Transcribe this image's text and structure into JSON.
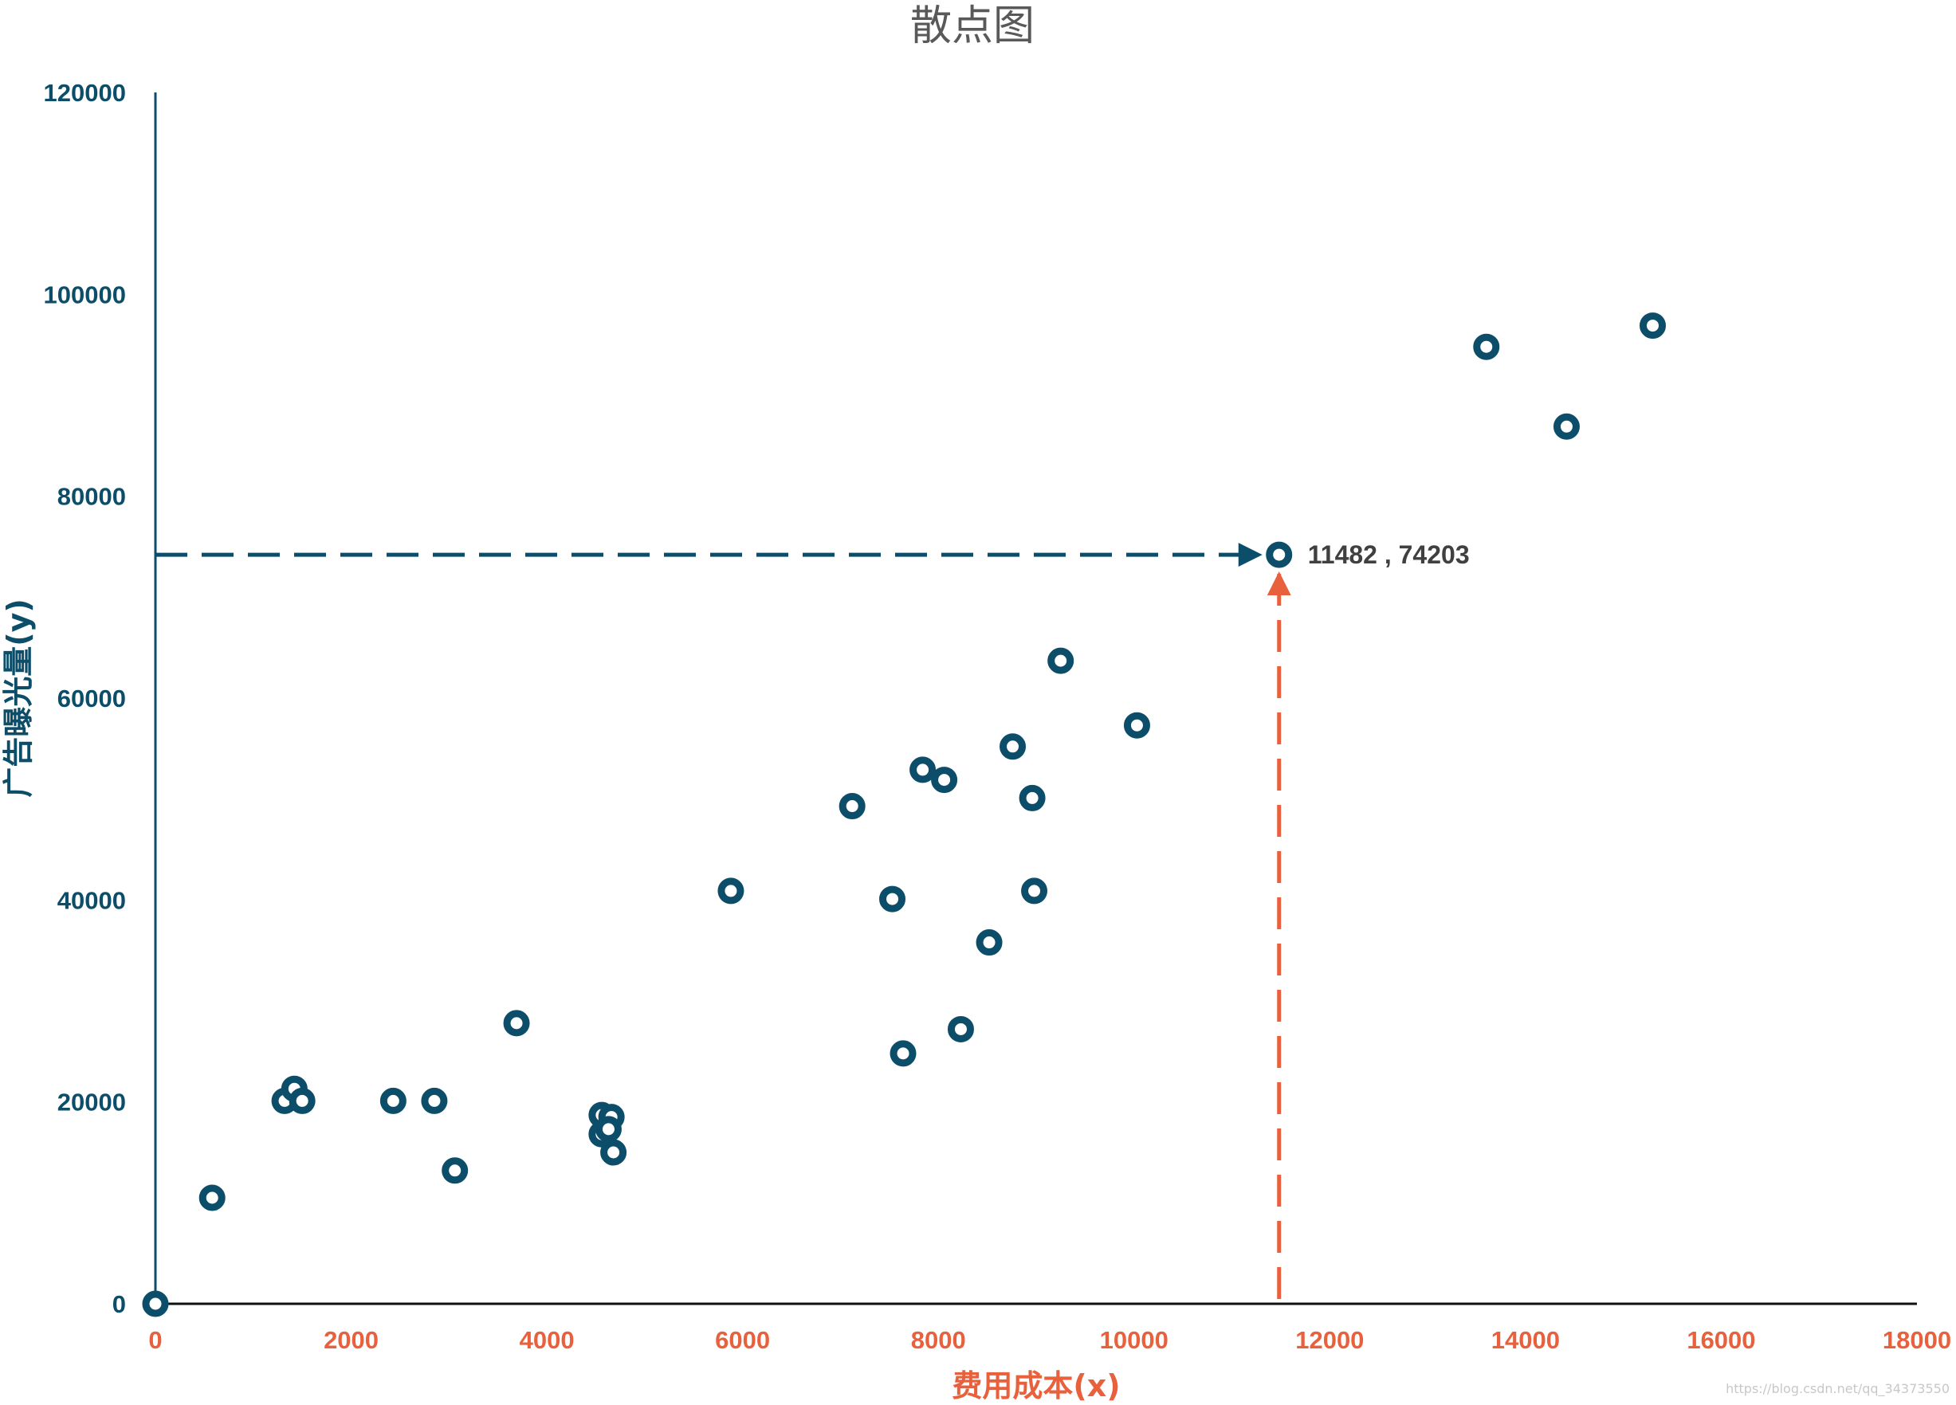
{
  "chart_data": {
    "type": "scatter",
    "title": "散点图",
    "xlabel": "费用成本(x)",
    "ylabel": "广告曝光量(y)",
    "xlim": [
      0,
      18000
    ],
    "ylim": [
      0,
      120000
    ],
    "xticks": [
      "0",
      "2000",
      "4000",
      "6000",
      "8000",
      "10000",
      "12000",
      "14000",
      "16000",
      "18000"
    ],
    "yticks": [
      "0",
      "20000",
      "40000",
      "60000",
      "80000",
      "100000",
      "120000"
    ],
    "grid": false,
    "legend": "none",
    "series": [
      {
        "points": [
          [
            0,
            0
          ],
          [
            580,
            10500
          ],
          [
            1320,
            20100
          ],
          [
            1420,
            21300
          ],
          [
            1500,
            20100
          ],
          [
            2430,
            20100
          ],
          [
            2850,
            20100
          ],
          [
            3060,
            13200
          ],
          [
            3690,
            27800
          ],
          [
            4560,
            18700
          ],
          [
            4660,
            18500
          ],
          [
            4560,
            16800
          ],
          [
            4630,
            17300
          ],
          [
            4680,
            15000
          ],
          [
            5880,
            40900
          ],
          [
            7120,
            49300
          ],
          [
            7530,
            40100
          ],
          [
            7640,
            24800
          ],
          [
            7840,
            52900
          ],
          [
            8060,
            51900
          ],
          [
            8230,
            27200
          ],
          [
            8520,
            35800
          ],
          [
            8760,
            55200
          ],
          [
            8960,
            50100
          ],
          [
            8980,
            40900
          ],
          [
            9250,
            63700
          ],
          [
            10030,
            57300
          ],
          [
            11482,
            74203
          ],
          [
            13600,
            94800
          ],
          [
            14420,
            86900
          ],
          [
            15300,
            96900
          ]
        ]
      }
    ],
    "highlight": {
      "x": 11482,
      "y": 74203,
      "label": "11482 , 74203"
    },
    "colors": {
      "points": "#0c4e69",
      "y_axis": "#0c4e69",
      "x_axis_text": "#e8603c",
      "h_arrow": "#0c4e69",
      "v_arrow": "#e8603c",
      "title": "#595959"
    }
  },
  "watermark": "https://blog.csdn.net/qq_34373550"
}
